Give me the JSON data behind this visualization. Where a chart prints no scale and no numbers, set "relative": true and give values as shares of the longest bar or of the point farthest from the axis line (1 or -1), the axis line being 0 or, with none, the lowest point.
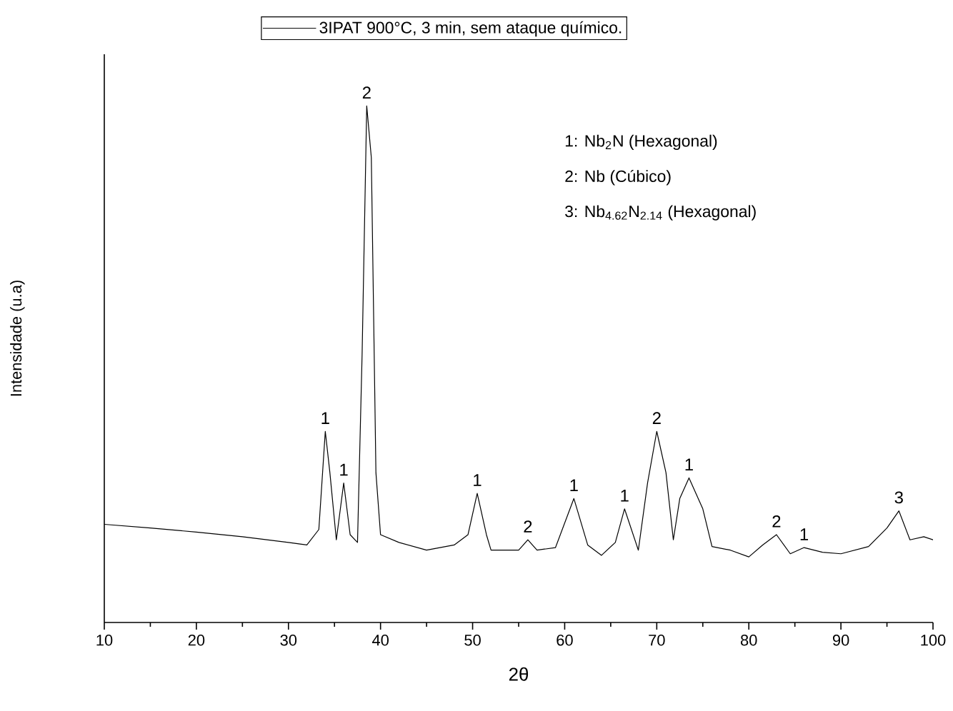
{
  "chart_data": {
    "type": "line",
    "relative": true,
    "xlabel": "2θ",
    "ylabel": "Intensidade (u.a)",
    "x": [
      10,
      15,
      20,
      25,
      30,
      32,
      33.3,
      34,
      34.5,
      35.2,
      36,
      36.7,
      37.5,
      38,
      38.5,
      39,
      39.5,
      40,
      42,
      45,
      48,
      49.5,
      50.5,
      51.5,
      52,
      55,
      56,
      57,
      59,
      61,
      62.5,
      64,
      65.5,
      66.5,
      68,
      69,
      70,
      71,
      71.8,
      72.5,
      73.5,
      75,
      76,
      78,
      80,
      81.5,
      83,
      84.5,
      86,
      88,
      90,
      93,
      95,
      96.3,
      97.5,
      99,
      100
    ],
    "series": [
      {
        "name": "3IPAT 900°C, 3 min, sem ataque químico.",
        "color": "#000000",
        "values": [
          0.19,
          0.183,
          0.175,
          0.166,
          0.155,
          0.15,
          0.18,
          0.37,
          0.29,
          0.16,
          0.27,
          0.17,
          0.155,
          0.52,
          1.0,
          0.9,
          0.29,
          0.17,
          0.155,
          0.14,
          0.15,
          0.17,
          0.25,
          0.17,
          0.14,
          0.14,
          0.16,
          0.14,
          0.145,
          0.24,
          0.15,
          0.13,
          0.155,
          0.22,
          0.14,
          0.27,
          0.37,
          0.29,
          0.16,
          0.24,
          0.28,
          0.22,
          0.147,
          0.14,
          0.127,
          0.15,
          0.17,
          0.133,
          0.145,
          0.136,
          0.133,
          0.147,
          0.183,
          0.216,
          0.16,
          0.166,
          0.16
        ]
      }
    ],
    "xlim": [
      10,
      100
    ],
    "xticks": [
      10,
      20,
      30,
      40,
      50,
      60,
      70,
      80,
      90,
      100
    ],
    "marker": "none",
    "line_style": "solid",
    "legend": "top",
    "annotations": [
      "1: Nb$_{2}$N (Hexagonal)",
      "2: Nb (Cúbico)",
      "3: Nb$_{4.62}$N$_{2.14}$  (Hexagonal)",
      {
        "text": "1",
        "x": 34,
        "y": 0.37
      },
      {
        "text": "1",
        "x": 36,
        "y": 0.27
      },
      {
        "text": "2",
        "x": 38.5,
        "y": 1.0
      },
      {
        "text": "1",
        "x": 50.5,
        "y": 0.25
      },
      {
        "text": "2",
        "x": 56,
        "y": 0.16
      },
      {
        "text": "1",
        "x": 61,
        "y": 0.24
      },
      {
        "text": "1",
        "x": 66.5,
        "y": 0.22
      },
      {
        "text": "2",
        "x": 70,
        "y": 0.37
      },
      {
        "text": "1",
        "x": 73.5,
        "y": 0.28
      },
      {
        "text": "2",
        "x": 83,
        "y": 0.17
      },
      {
        "text": "1",
        "x": 86,
        "y": 0.145
      },
      {
        "text": "3",
        "x": 96.3,
        "y": 0.216
      }
    ]
  }
}
